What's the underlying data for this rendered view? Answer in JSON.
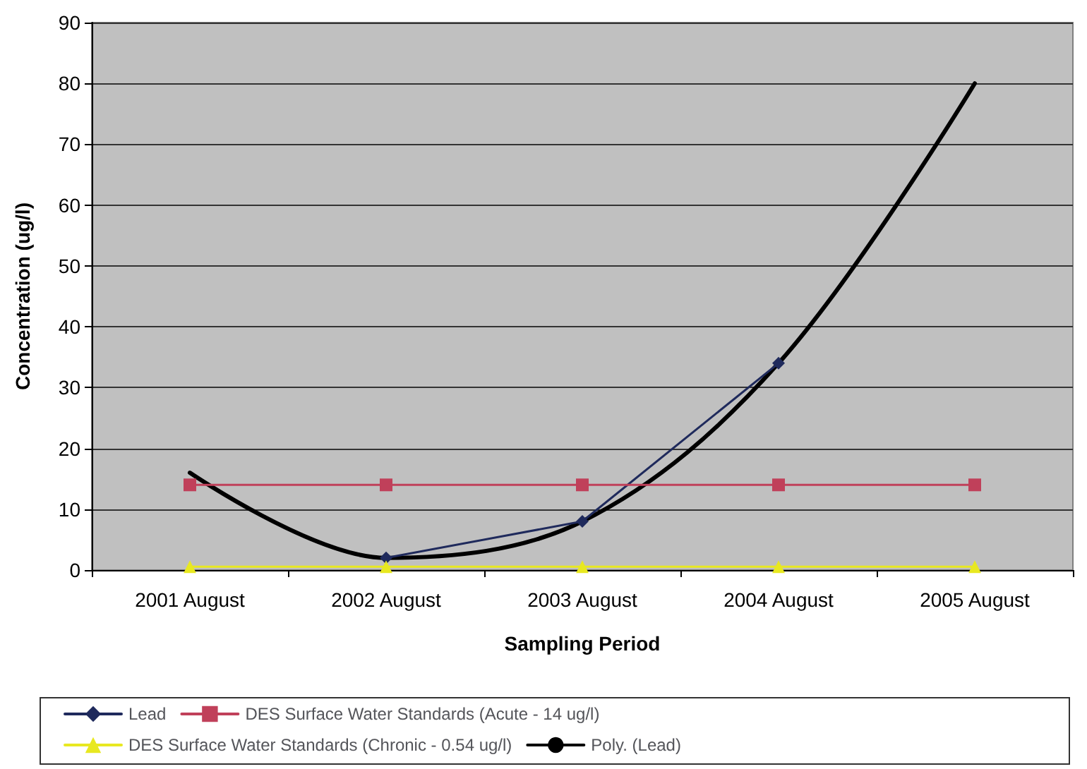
{
  "chart_data": {
    "type": "line",
    "xlabel": "Sampling Period",
    "ylabel": "Concentration (ug/l)",
    "categories": [
      "2001 August",
      "2002 August",
      "2003 August",
      "2004 August",
      "2005 August"
    ],
    "series": [
      {
        "name": "Lead",
        "color": "#1f2a5c",
        "values": [
          null,
          2,
          8,
          34,
          null
        ],
        "marker": "diamond"
      },
      {
        "name": "DES Surface Water Standards (Acute - 14 ug/l)",
        "color": "#c0405a",
        "values": [
          14,
          14,
          14,
          14,
          14
        ],
        "marker": "square"
      },
      {
        "name": "DES Surface Water Standards (Chronic - 0.54 ug/l)",
        "color": "#e8e820",
        "values": [
          0.54,
          0.54,
          0.54,
          0.54,
          0.54
        ],
        "marker": "triangle"
      },
      {
        "name": "Poly. (Lead)",
        "color": "#000000",
        "values": [
          16,
          2,
          8,
          34,
          80
        ],
        "marker": "none"
      }
    ],
    "ylim": [
      0,
      90
    ],
    "yticks": [
      0,
      10,
      20,
      30,
      40,
      50,
      60,
      70,
      80,
      90
    ],
    "grid": "y",
    "legend": "bottom"
  }
}
